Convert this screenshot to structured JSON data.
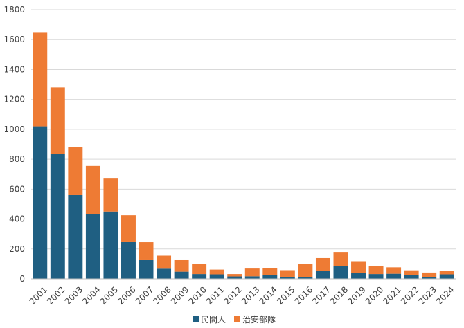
{
  "colors": {
    "series_1": "#1f5f82",
    "series_2": "#ee7b34",
    "grid": "#d9d9d9",
    "axis": "#bfbfbf",
    "text": "#404040"
  },
  "legend": {
    "series_1_label": "民間人",
    "series_2_label": "治安部隊"
  },
  "chart_data": {
    "type": "bar",
    "stacked": true,
    "categories": [
      "2001",
      "2002",
      "2003",
      "2004",
      "2005",
      "2006",
      "2007",
      "2008",
      "2009",
      "2010",
      "2011",
      "2012",
      "2013",
      "2014",
      "2015",
      "2016",
      "2017",
      "2018",
      "2019",
      "2020",
      "2021",
      "2022",
      "2023",
      "2024"
    ],
    "series": [
      {
        "name": "民間人",
        "values": [
          1020,
          835,
          560,
          435,
          450,
          250,
          125,
          68,
          48,
          32,
          30,
          16,
          17,
          26,
          14,
          10,
          52,
          85,
          40,
          32,
          34,
          25,
          11,
          30
        ]
      },
      {
        "name": "治安部隊",
        "values": [
          630,
          445,
          320,
          320,
          225,
          175,
          120,
          87,
          77,
          69,
          32,
          16,
          52,
          46,
          44,
          90,
          87,
          95,
          78,
          53,
          43,
          32,
          31,
          22
        ]
      }
    ],
    "ylim": [
      0,
      1800
    ],
    "yticks": [
      0,
      200,
      400,
      600,
      800,
      1000,
      1200,
      1400,
      1600,
      1800
    ],
    "grid": true,
    "legend_position": "bottom"
  }
}
